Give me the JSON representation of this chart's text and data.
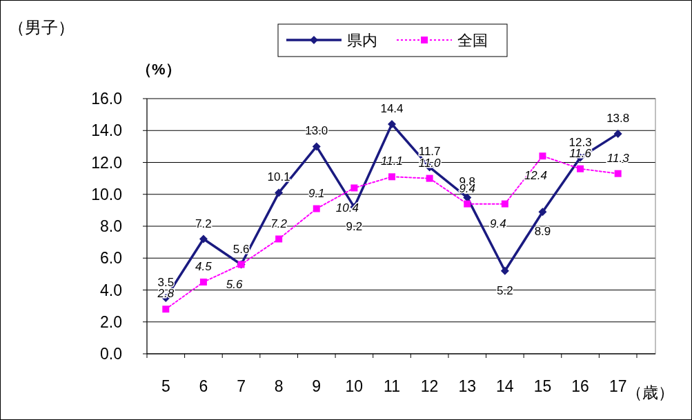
{
  "chart_data": {
    "type": "line",
    "title": "（男子）",
    "ylabel": "（%）",
    "xlabel": "（歳）",
    "categories": [
      "5",
      "6",
      "7",
      "8",
      "9",
      "10",
      "11",
      "12",
      "13",
      "14",
      "15",
      "16",
      "17"
    ],
    "ylim": [
      0,
      16
    ],
    "yticks": [
      {
        "value": 0,
        "label": "0.0"
      },
      {
        "value": 2,
        "label": "2.0"
      },
      {
        "value": 4,
        "label": "4.0"
      },
      {
        "value": 6,
        "label": "6.0"
      },
      {
        "value": 8,
        "label": "8.0"
      },
      {
        "value": 10,
        "label": "10.0"
      },
      {
        "value": 12,
        "label": "12.0"
      },
      {
        "value": 14,
        "label": "14.0"
      },
      {
        "value": 16,
        "label": "16.0"
      }
    ],
    "grid": "y",
    "legend": "top",
    "series": [
      {
        "name": "県内",
        "color": "#1a1a80",
        "marker": "diamond",
        "line_style": "solid",
        "values": [
          3.5,
          7.2,
          5.6,
          10.1,
          13.0,
          9.2,
          14.4,
          11.7,
          9.8,
          5.2,
          8.9,
          12.3,
          13.8
        ],
        "value_labels": [
          "3.5",
          "7.2",
          "5.6",
          "10.1",
          "13.0",
          "9.2",
          "14.4",
          "11.7",
          "9.8",
          "5.2",
          "8.9",
          "12.3",
          "13.8"
        ]
      },
      {
        "name": "全国",
        "color": "#ff00ff",
        "marker": "square",
        "line_style": "dotted",
        "values": [
          2.8,
          4.5,
          5.6,
          7.2,
          9.1,
          10.4,
          11.1,
          11.0,
          9.4,
          9.4,
          12.4,
          11.6,
          11.3
        ],
        "value_labels": [
          "2.8",
          "4.5",
          "5.6",
          "7.2",
          "9.1",
          "10.4",
          "11.1",
          "11.0",
          "9.4",
          "9.4",
          "12.4",
          "11.6",
          "11.3"
        ]
      }
    ]
  }
}
